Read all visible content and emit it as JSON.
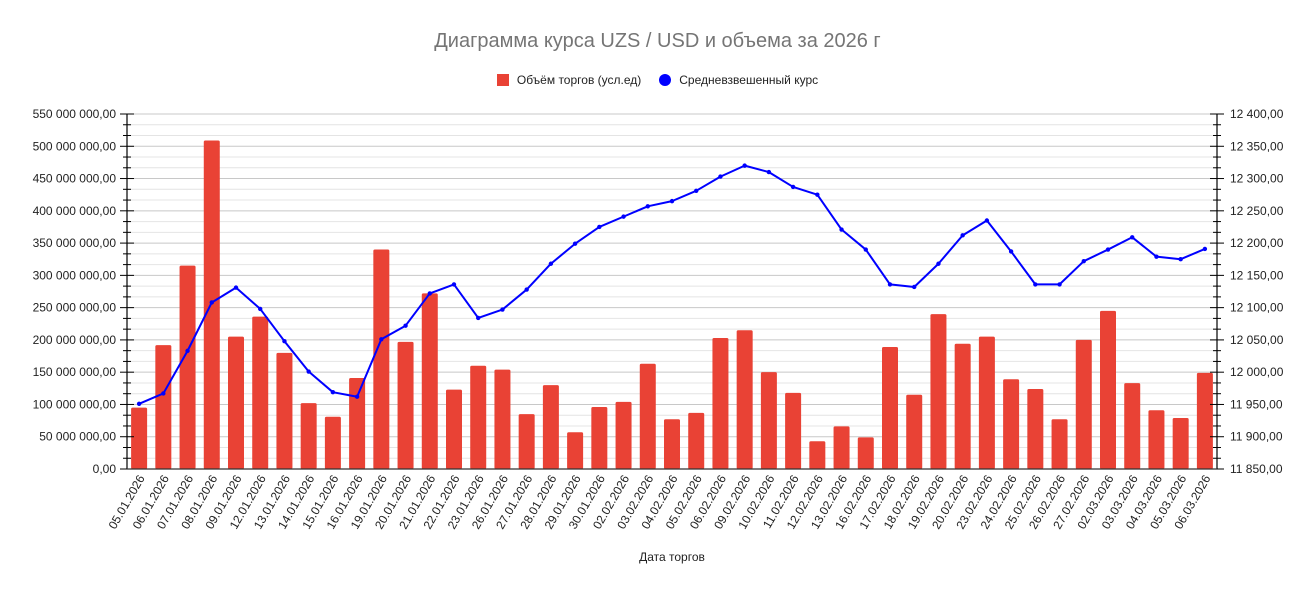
{
  "title": "Диаграмма курса UZS / USD и объема за 2026 г",
  "legend": [
    {
      "label": "Объём торгов (усл.ед)",
      "color": "#e94235",
      "shape": "square"
    },
    {
      "label": "Средневзвешенный курс",
      "color": "#0000ff",
      "shape": "circle"
    }
  ],
  "colors": {
    "bar": "#e94235",
    "line": "#0000ff",
    "major_grid": "#c8c8c8",
    "minor_grid": "#e4e4e4",
    "axis": "#000000",
    "title": "#757575"
  },
  "chart_data": {
    "type": "bar+line",
    "title": "Диаграмма курса UZS / USD и объема за 2026 г",
    "xlabel": "Дата торгов",
    "ylabel_left": "",
    "ylabel_right": "",
    "legend_position": "top",
    "grid": true,
    "ylim_left": [
      0,
      550000000
    ],
    "ylim_right": [
      11850,
      12400
    ],
    "yticks_left": [
      "0,00",
      "50 000 000,00",
      "100 000 000,00",
      "150 000 000,00",
      "200 000 000,00",
      "250 000 000,00",
      "300 000 000,00",
      "350 000 000,00",
      "400 000 000,00",
      "450 000 000,00",
      "500 000 000,00",
      "550 000 000,00"
    ],
    "yticks_right": [
      "11 850,00",
      "11 900,00",
      "11 950,00",
      "12 000,00",
      "12 050,00",
      "12 100,00",
      "12 150,00",
      "12 200,00",
      "12 250,00",
      "12 300,00",
      "12 350,00",
      "12 400,00"
    ],
    "categories": [
      "05.01.2026",
      "06.01.2026",
      "07.01.2026",
      "08.01.2026",
      "09.01.2026",
      "12.01.2026",
      "13.01.2026",
      "14.01.2026",
      "15.01.2026",
      "16.01.2026",
      "19.01.2026",
      "20.01.2026",
      "21.01.2026",
      "22.01.2026",
      "23.01.2026",
      "26.01.2026",
      "27.01.2026",
      "28.01.2026",
      "29.01.2026",
      "30.01.2026",
      "02.02.2026",
      "03.02.2026",
      "04.02.2026",
      "05.02.2026",
      "06.02.2026",
      "09.02.2026",
      "10.02.2026",
      "11.02.2026",
      "12.02.2026",
      "13.02.2026",
      "16.02.2026",
      "17.02.2026",
      "18.02.2026",
      "19.02.2026",
      "20.02.2026",
      "23.02.2026",
      "24.02.2026",
      "25.02.2026",
      "26.02.2026",
      "27.02.2026",
      "02.03.2026",
      "03.03.2026",
      "04.03.2026",
      "05.03.2026",
      "06.03.2026"
    ],
    "series": [
      {
        "name": "Объём торгов (усл.ед)",
        "type": "bar",
        "axis": "left",
        "values": [
          95000000,
          192000000,
          315000000,
          509000000,
          205000000,
          236000000,
          180000000,
          102000000,
          81000000,
          141000000,
          340000000,
          197000000,
          272000000,
          123000000,
          160000000,
          154000000,
          85000000,
          130000000,
          57000000,
          96000000,
          104000000,
          163000000,
          77000000,
          87000000,
          203000000,
          215000000,
          150000000,
          118000000,
          43000000,
          66000000,
          49000000,
          189000000,
          115000000,
          240000000,
          194000000,
          205000000,
          139000000,
          124000000,
          77000000,
          200000000,
          245000000,
          133000000,
          91000000,
          79000000,
          149000000
        ]
      },
      {
        "name": "Средневзвешенный курс",
        "type": "line",
        "axis": "right",
        "values": [
          11951,
          11967,
          12033,
          12108,
          12131,
          12098,
          12048,
          12001,
          11969,
          11962,
          12051,
          12072,
          12122,
          12136,
          12084,
          12097,
          12128,
          12168,
          12199,
          12225,
          12241,
          12257,
          12265,
          12281,
          12303,
          12320,
          12310,
          12287,
          12275,
          12221,
          12190,
          12136,
          12132,
          12168,
          12212,
          12235,
          12187,
          12136,
          12136,
          12172,
          12190,
          12209,
          12179,
          12175,
          12191
        ]
      }
    ]
  }
}
